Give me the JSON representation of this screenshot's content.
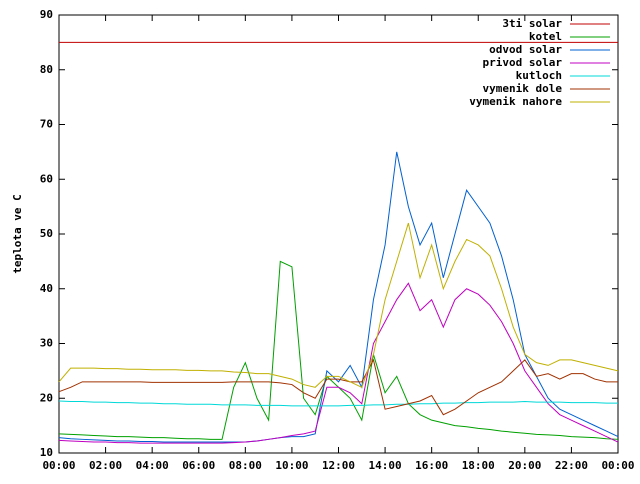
{
  "chart_data": {
    "type": "line",
    "y_label": "teplota ve C",
    "legend": "top-right",
    "grid": false,
    "x": [
      0,
      0.5,
      1,
      1.5,
      2,
      2.5,
      3,
      3.5,
      4,
      4.5,
      5,
      5.5,
      6,
      6.5,
      7,
      7.5,
      8,
      8.5,
      9,
      9.5,
      10,
      10.5,
      11,
      11.5,
      12,
      12.5,
      13,
      13.5,
      14,
      14.5,
      15,
      15.5,
      16,
      16.5,
      17,
      17.5,
      18,
      18.5,
      19,
      19.5,
      20,
      20.5,
      21,
      21.5,
      22,
      22.5,
      23,
      23.5,
      24
    ],
    "xlim": [
      0,
      24
    ],
    "xticks": [
      {
        "value": 0,
        "label": "00:00"
      },
      {
        "value": 2,
        "label": "02:00"
      },
      {
        "value": 4,
        "label": "04:00"
      },
      {
        "value": 6,
        "label": "06:00"
      },
      {
        "value": 8,
        "label": "08:00"
      },
      {
        "value": 10,
        "label": "10:00"
      },
      {
        "value": 12,
        "label": "12:00"
      },
      {
        "value": 14,
        "label": "14:00"
      },
      {
        "value": 16,
        "label": "16:00"
      },
      {
        "value": 18,
        "label": "18:00"
      },
      {
        "value": 20,
        "label": "20:00"
      },
      {
        "value": 22,
        "label": "22:00"
      },
      {
        "value": 24,
        "label": "00:00"
      }
    ],
    "ylim": [
      10,
      90
    ],
    "yticks": [
      10,
      20,
      30,
      40,
      50,
      60,
      70,
      80,
      90
    ],
    "series": [
      {
        "name": "3ti solar",
        "color": "#c00000",
        "values": [
          85,
          85,
          85,
          85,
          85,
          85,
          85,
          85,
          85,
          85,
          85,
          85,
          85,
          85,
          85,
          85,
          85,
          85,
          85,
          85,
          85,
          85,
          85,
          85,
          85,
          85,
          85,
          85,
          85,
          85,
          85,
          85,
          85,
          85,
          85,
          85,
          85,
          85,
          85,
          85,
          85,
          85,
          85,
          85,
          85,
          85,
          85,
          85,
          85
        ]
      },
      {
        "name": "kotel",
        "color": "#00a000",
        "values": [
          13.5,
          13.4,
          13.3,
          13.2,
          13.1,
          13,
          13,
          12.9,
          12.8,
          12.8,
          12.7,
          12.6,
          12.6,
          12.5,
          12.5,
          22,
          26.5,
          20,
          16,
          45,
          44,
          20,
          17,
          24,
          22,
          20,
          16,
          28,
          21,
          24,
          19,
          17,
          16,
          15.5,
          15,
          14.8,
          14.5,
          14.3,
          14,
          13.8,
          13.6,
          13.4,
          13.3,
          13.2,
          13,
          12.9,
          12.8,
          12.6,
          12.5
        ]
      },
      {
        "name": "odvod solar",
        "color": "#0060d0",
        "values": [
          12.8,
          12.6,
          12.5,
          12.4,
          12.3,
          12.2,
          12.2,
          12.1,
          12.1,
          12,
          12,
          12,
          12,
          12,
          12,
          12,
          12,
          12.2,
          12.5,
          12.8,
          13,
          13,
          13.5,
          25,
          23,
          26,
          22,
          38,
          48,
          65,
          55,
          48,
          52,
          42,
          50,
          58,
          55,
          52,
          46,
          38,
          28,
          24,
          20,
          18,
          17,
          16,
          15,
          14,
          13
        ]
      },
      {
        "name": "privod solar",
        "color": "#c000c0",
        "values": [
          12.3,
          12.2,
          12.1,
          12,
          12,
          11.9,
          11.9,
          11.8,
          11.8,
          11.8,
          11.8,
          11.8,
          11.8,
          11.8,
          11.8,
          11.9,
          12,
          12.2,
          12.5,
          12.8,
          13.2,
          13.5,
          14,
          22,
          22,
          21,
          19,
          30,
          34,
          38,
          41,
          36,
          38,
          33,
          38,
          40,
          39,
          37,
          34,
          30,
          25,
          22,
          19,
          17,
          16,
          15,
          14,
          13,
          12
        ]
      },
      {
        "name": "kutloch",
        "color": "#00d8d8",
        "values": [
          19.5,
          19.4,
          19.4,
          19.3,
          19.3,
          19.2,
          19.2,
          19.1,
          19.1,
          19,
          19,
          18.9,
          18.9,
          18.9,
          18.8,
          18.8,
          18.8,
          18.7,
          18.7,
          18.7,
          18.6,
          18.6,
          18.6,
          18.6,
          18.6,
          18.7,
          18.7,
          18.8,
          18.8,
          18.9,
          18.9,
          19,
          19,
          19.1,
          19.1,
          19.2,
          19.2,
          19.3,
          19.3,
          19.3,
          19.4,
          19.3,
          19.3,
          19.3,
          19.2,
          19.2,
          19.2,
          19.1,
          19.1
        ]
      },
      {
        "name": "vymenik dole",
        "color": "#a03000",
        "values": [
          21.2,
          22,
          23,
          23,
          23,
          23,
          23,
          23,
          22.9,
          22.9,
          22.9,
          22.9,
          22.9,
          22.9,
          22.9,
          23,
          23,
          23,
          23,
          22.8,
          22.5,
          21,
          20,
          23.5,
          23.5,
          23,
          23,
          27,
          18,
          18.5,
          19,
          19.5,
          20.5,
          17,
          18,
          19.5,
          21,
          22,
          23,
          25,
          27,
          24,
          24.5,
          23.5,
          24.5,
          24.5,
          23.5,
          23,
          23
        ]
      },
      {
        "name": "vymenik nahore",
        "color": "#c0b000",
        "values": [
          23,
          25.5,
          25.5,
          25.5,
          25.4,
          25.4,
          25.3,
          25.3,
          25.2,
          25.2,
          25.2,
          25.1,
          25.1,
          25,
          25,
          24.8,
          24.7,
          24.5,
          24.5,
          24,
          23.5,
          22.5,
          22,
          24,
          24,
          23,
          22,
          28,
          38,
          45,
          52,
          42,
          48,
          40,
          45,
          49,
          48,
          46,
          40,
          33,
          28,
          26.5,
          26,
          27,
          27,
          26.5,
          26,
          25.5,
          25
        ]
      }
    ]
  }
}
